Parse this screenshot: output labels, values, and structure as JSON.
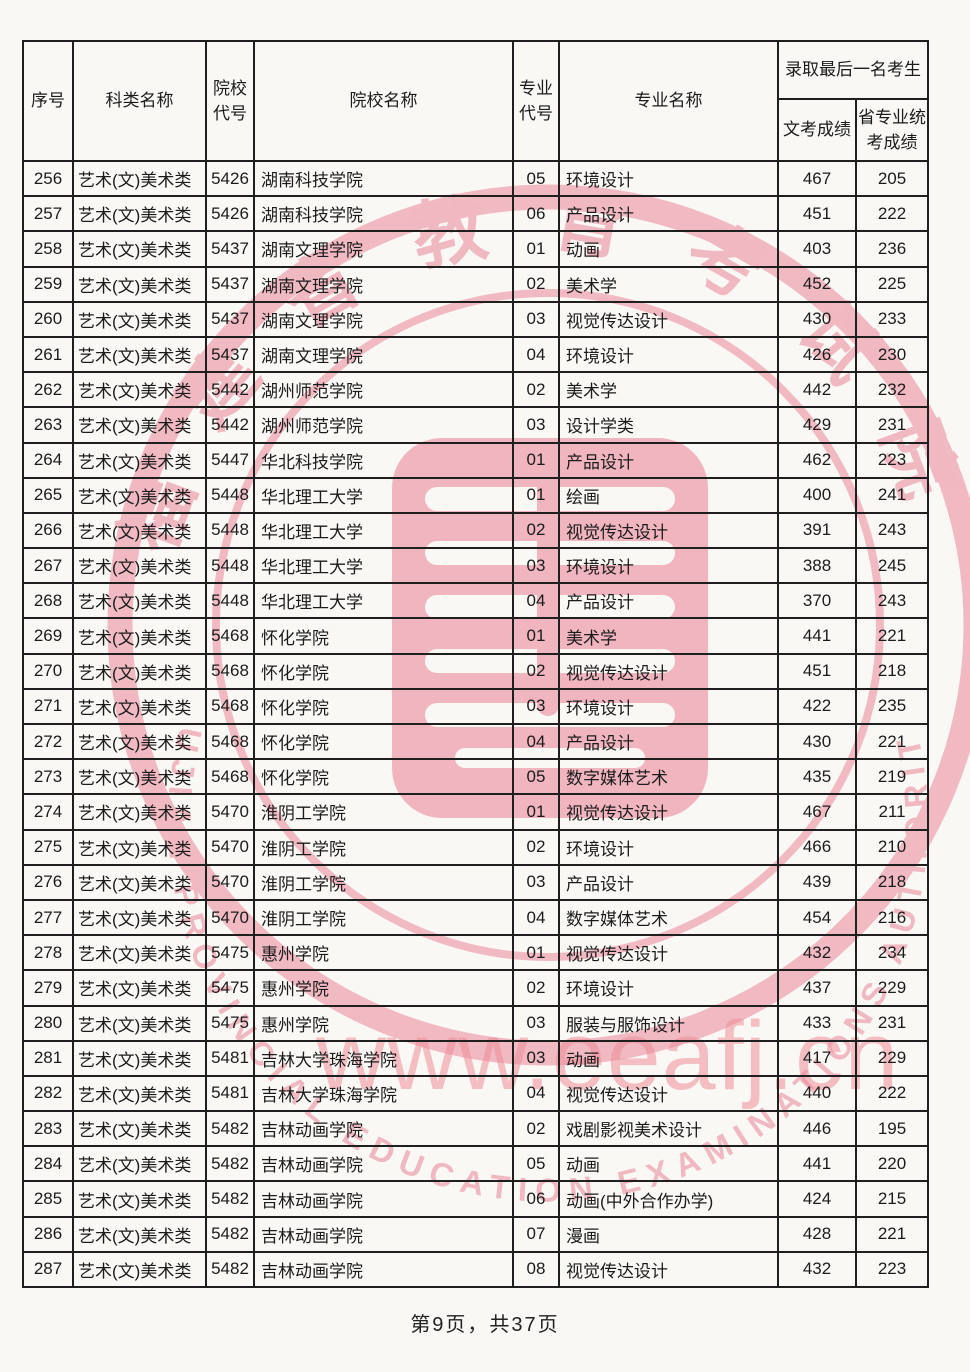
{
  "page": {
    "footer": "第9页，共37页"
  },
  "table": {
    "headers": {
      "seq": "序号",
      "category": "科类名称",
      "inst_code": "院校\n代号",
      "inst_name": "院校名称",
      "major_code": "专业\n代号",
      "major_name": "专业名称",
      "last_admitted": "录取最后一名考生",
      "exam_score": "文考成绩",
      "provincial_score": "省专业统\n考成绩"
    },
    "rows": [
      [
        "256",
        "艺术(文)美术类",
        "5426",
        "湖南科技学院",
        "05",
        "环境设计",
        "467",
        "205"
      ],
      [
        "257",
        "艺术(文)美术类",
        "5426",
        "湖南科技学院",
        "06",
        "产品设计",
        "451",
        "222"
      ],
      [
        "258",
        "艺术(文)美术类",
        "5437",
        "湖南文理学院",
        "01",
        "动画",
        "403",
        "236"
      ],
      [
        "259",
        "艺术(文)美术类",
        "5437",
        "湖南文理学院",
        "02",
        "美术学",
        "452",
        "225"
      ],
      [
        "260",
        "艺术(文)美术类",
        "5437",
        "湖南文理学院",
        "03",
        "视觉传达设计",
        "430",
        "233"
      ],
      [
        "261",
        "艺术(文)美术类",
        "5437",
        "湖南文理学院",
        "04",
        "环境设计",
        "426",
        "230"
      ],
      [
        "262",
        "艺术(文)美术类",
        "5442",
        "湖州师范学院",
        "02",
        "美术学",
        "442",
        "232"
      ],
      [
        "263",
        "艺术(文)美术类",
        "5442",
        "湖州师范学院",
        "03",
        "设计学类",
        "429",
        "231"
      ],
      [
        "264",
        "艺术(文)美术类",
        "5447",
        "华北科技学院",
        "01",
        "产品设计",
        "462",
        "223"
      ],
      [
        "265",
        "艺术(文)美术类",
        "5448",
        "华北理工大学",
        "01",
        "绘画",
        "400",
        "241"
      ],
      [
        "266",
        "艺术(文)美术类",
        "5448",
        "华北理工大学",
        "02",
        "视觉传达设计",
        "391",
        "243"
      ],
      [
        "267",
        "艺术(文)美术类",
        "5448",
        "华北理工大学",
        "03",
        "环境设计",
        "388",
        "245"
      ],
      [
        "268",
        "艺术(文)美术类",
        "5448",
        "华北理工大学",
        "04",
        "产品设计",
        "370",
        "243"
      ],
      [
        "269",
        "艺术(文)美术类",
        "5468",
        "怀化学院",
        "01",
        "美术学",
        "441",
        "221"
      ],
      [
        "270",
        "艺术(文)美术类",
        "5468",
        "怀化学院",
        "02",
        "视觉传达设计",
        "451",
        "218"
      ],
      [
        "271",
        "艺术(文)美术类",
        "5468",
        "怀化学院",
        "03",
        "环境设计",
        "422",
        "235"
      ],
      [
        "272",
        "艺术(文)美术类",
        "5468",
        "怀化学院",
        "04",
        "产品设计",
        "430",
        "221"
      ],
      [
        "273",
        "艺术(文)美术类",
        "5468",
        "怀化学院",
        "05",
        "数字媒体艺术",
        "435",
        "219"
      ],
      [
        "274",
        "艺术(文)美术类",
        "5470",
        "淮阴工学院",
        "01",
        "视觉传达设计",
        "467",
        "211"
      ],
      [
        "275",
        "艺术(文)美术类",
        "5470",
        "淮阴工学院",
        "02",
        "环境设计",
        "466",
        "210"
      ],
      [
        "276",
        "艺术(文)美术类",
        "5470",
        "淮阴工学院",
        "03",
        "产品设计",
        "439",
        "218"
      ],
      [
        "277",
        "艺术(文)美术类",
        "5470",
        "淮阴工学院",
        "04",
        "数字媒体艺术",
        "454",
        "216"
      ],
      [
        "278",
        "艺术(文)美术类",
        "5475",
        "惠州学院",
        "01",
        "视觉传达设计",
        "432",
        "234"
      ],
      [
        "279",
        "艺术(文)美术类",
        "5475",
        "惠州学院",
        "02",
        "环境设计",
        "437",
        "229"
      ],
      [
        "280",
        "艺术(文)美术类",
        "5475",
        "惠州学院",
        "03",
        "服装与服饰设计",
        "433",
        "231"
      ],
      [
        "281",
        "艺术(文)美术类",
        "5481",
        "吉林大学珠海学院",
        "03",
        "动画",
        "417",
        "229"
      ],
      [
        "282",
        "艺术(文)美术类",
        "5481",
        "吉林大学珠海学院",
        "04",
        "视觉传达设计",
        "440",
        "222"
      ],
      [
        "283",
        "艺术(文)美术类",
        "5482",
        "吉林动画学院",
        "02",
        "戏剧影视美术设计",
        "446",
        "195"
      ],
      [
        "284",
        "艺术(文)美术类",
        "5482",
        "吉林动画学院",
        "05",
        "动画",
        "441",
        "220"
      ],
      [
        "285",
        "艺术(文)美术类",
        "5482",
        "吉林动画学院",
        "06",
        "动画(中外合作办学)",
        "424",
        "215"
      ],
      [
        "286",
        "艺术(文)美术类",
        "5482",
        "吉林动画学院",
        "07",
        "漫画",
        "428",
        "221"
      ],
      [
        "287",
        "艺术(文)美术类",
        "5482",
        "吉林动画学院",
        "08",
        "视觉传达设计",
        "432",
        "223"
      ]
    ]
  },
  "watermark": {
    "seal_cn": "福建省教育考试院",
    "seal_en": "FUJIAN PROVINCIAL EDUCATION EXAMINATIONS AUTHORITY",
    "url": "www.eeafj.cn",
    "seal_color": "#f0b2bc",
    "url_color": "#ec8c97"
  }
}
